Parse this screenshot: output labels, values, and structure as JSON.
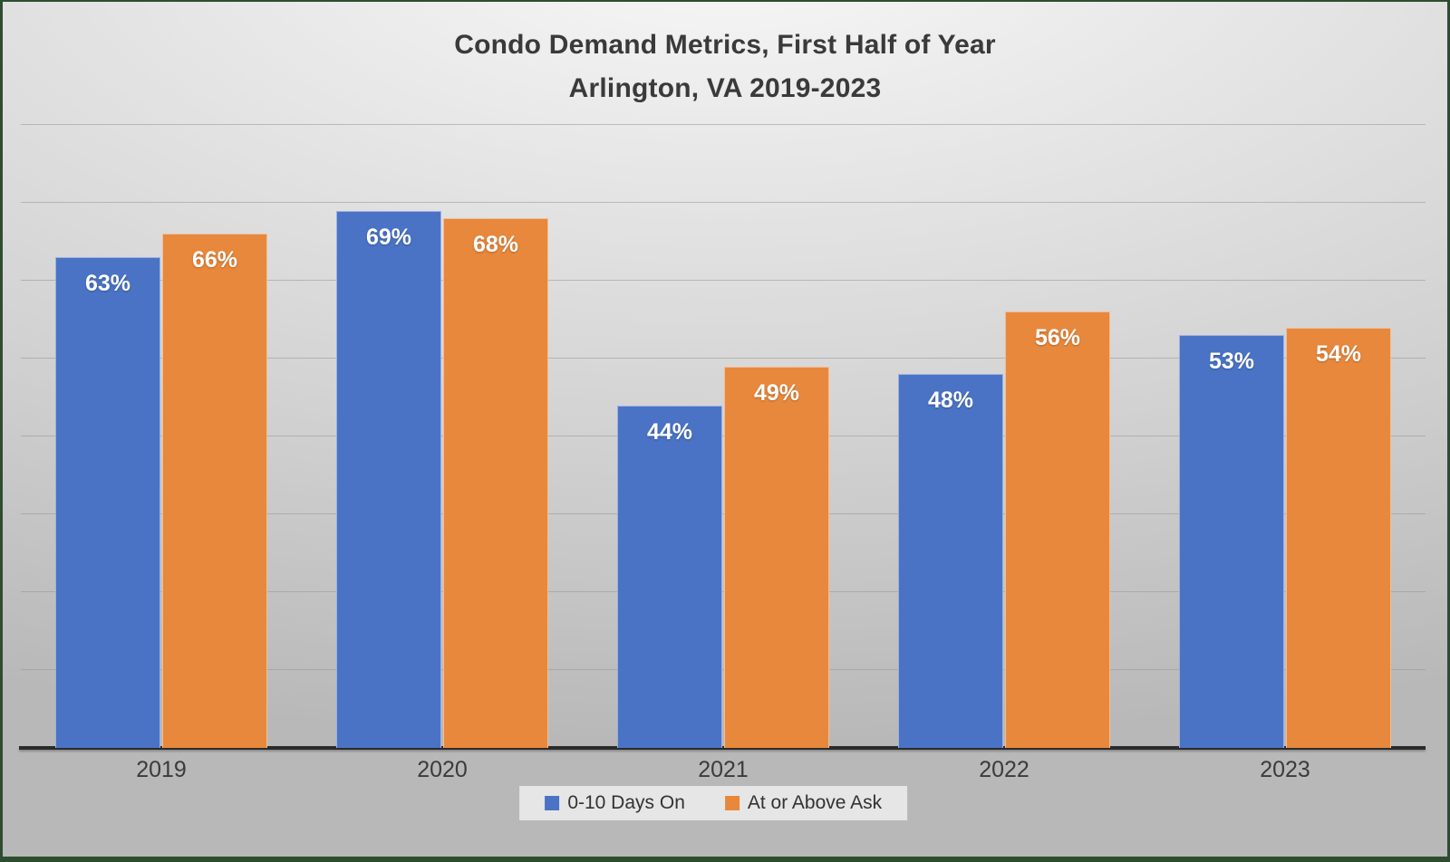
{
  "chart_data": {
    "type": "bar",
    "title": "Condo Demand Metrics, First Half of Year",
    "subtitle": "Arlington, VA 2019-2023",
    "categories": [
      "2019",
      "2020",
      "2021",
      "2022",
      "2023"
    ],
    "series": [
      {
        "name": "0-10 Days On",
        "color": "#4A73C6",
        "values": [
          63,
          69,
          44,
          48,
          53
        ],
        "data_labels": [
          "63%",
          "69%",
          "44%",
          "48%",
          "53%"
        ]
      },
      {
        "name": "At or Above Ask",
        "color": "#E8883C",
        "values": [
          66,
          68,
          49,
          56,
          54
        ],
        "data_labels": [
          "66%",
          "68%",
          "49%",
          "56%",
          "54%"
        ]
      }
    ],
    "unit": "%",
    "ylim": [
      0,
      80
    ],
    "gridline_interval": 10,
    "grid": "horizontal",
    "y_axis_labels_visible": false,
    "legend_position": "bottom",
    "style": {
      "background": "light gray gradient",
      "frame_border_color": "#2e4d30",
      "axis_line_color": "#2b2b2b",
      "gridline_color": "#969696",
      "title_color": "#3a3a3a",
      "category_label_color": "#3b3b3b",
      "data_label_color": "#ffffff",
      "legend_background": "#e6e6e6"
    }
  }
}
